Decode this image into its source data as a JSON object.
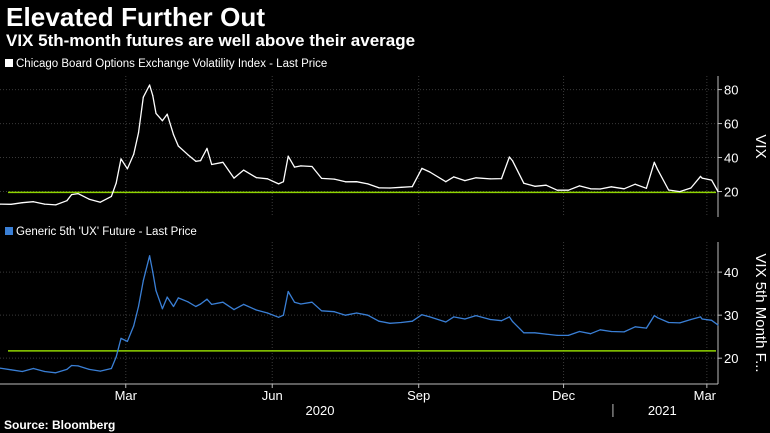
{
  "header": {
    "title": "Elevated Further Out",
    "subtitle": "VIX 5th-month futures are well above their average"
  },
  "footer": {
    "source": "Source: Bloomberg"
  },
  "colors": {
    "vix_line": "#ffffff",
    "future_line": "#3a7fd5",
    "average_line": "#8fd400",
    "background": "#000000",
    "grid": "#3a3a3a"
  },
  "chart_data": [
    {
      "type": "line",
      "legend": "Chicago Board Options Exchange Volatility Index - Last Price",
      "ylabel": "VIX",
      "ylim": [
        5,
        88
      ],
      "yticks": [
        20,
        40,
        60,
        80
      ],
      "grid": true,
      "x_axis": {
        "month_labels": [
          {
            "label": "Mar",
            "date": "2020-03-01"
          },
          {
            "label": "Jun",
            "date": "2020-06-01"
          },
          {
            "label": "Sep",
            "date": "2020-09-01"
          },
          {
            "label": "Dec",
            "date": "2020-12-01"
          },
          {
            "label": "Mar",
            "date": "2021-03-01"
          }
        ],
        "year_labels": [
          {
            "label": "2020",
            "date": "2020-07-01"
          },
          {
            "label": "2021",
            "date": "2021-02-01"
          }
        ],
        "range": [
          "2019-12-13",
          "2021-03-08"
        ]
      },
      "reference_line": {
        "value": 19.5
      },
      "series": [
        {
          "color": "#ffffff",
          "points": [
            [
              "2019-12-13",
              12.6
            ],
            [
              "2019-12-20",
              12.5
            ],
            [
              "2019-12-27",
              13.4
            ],
            [
              "2020-01-03",
              14.0
            ],
            [
              "2020-01-10",
              12.6
            ],
            [
              "2020-01-17",
              12.1
            ],
            [
              "2020-01-24",
              14.6
            ],
            [
              "2020-01-27",
              18.2
            ],
            [
              "2020-01-31",
              18.8
            ],
            [
              "2020-02-07",
              15.5
            ],
            [
              "2020-02-14",
              13.7
            ],
            [
              "2020-02-21",
              17.1
            ],
            [
              "2020-02-24",
              25.0
            ],
            [
              "2020-02-27",
              39.2
            ],
            [
              "2020-03-02",
              33.4
            ],
            [
              "2020-03-06",
              41.9
            ],
            [
              "2020-03-09",
              54.5
            ],
            [
              "2020-03-12",
              75.5
            ],
            [
              "2020-03-16",
              82.7
            ],
            [
              "2020-03-18",
              76.4
            ],
            [
              "2020-03-20",
              66.0
            ],
            [
              "2020-03-24",
              61.7
            ],
            [
              "2020-03-27",
              65.5
            ],
            [
              "2020-03-31",
              53.5
            ],
            [
              "2020-04-03",
              46.8
            ],
            [
              "2020-04-09",
              41.7
            ],
            [
              "2020-04-14",
              37.8
            ],
            [
              "2020-04-17",
              38.2
            ],
            [
              "2020-04-21",
              45.4
            ],
            [
              "2020-04-24",
              35.9
            ],
            [
              "2020-05-01",
              37.2
            ],
            [
              "2020-05-08",
              27.9
            ],
            [
              "2020-05-14",
              32.6
            ],
            [
              "2020-05-22",
              28.2
            ],
            [
              "2020-05-29",
              27.5
            ],
            [
              "2020-06-05",
              24.5
            ],
            [
              "2020-06-08",
              25.8
            ],
            [
              "2020-06-11",
              40.8
            ],
            [
              "2020-06-15",
              34.4
            ],
            [
              "2020-06-19",
              35.1
            ],
            [
              "2020-06-26",
              34.7
            ],
            [
              "2020-07-02",
              27.7
            ],
            [
              "2020-07-10",
              27.3
            ],
            [
              "2020-07-17",
              25.7
            ],
            [
              "2020-07-24",
              25.8
            ],
            [
              "2020-07-31",
              24.5
            ],
            [
              "2020-08-07",
              22.2
            ],
            [
              "2020-08-14",
              22.1
            ],
            [
              "2020-08-21",
              22.5
            ],
            [
              "2020-08-28",
              22.9
            ],
            [
              "2020-09-03",
              33.6
            ],
            [
              "2020-09-08",
              31.5
            ],
            [
              "2020-09-18",
              25.8
            ],
            [
              "2020-09-23",
              28.6
            ],
            [
              "2020-09-30",
              26.4
            ],
            [
              "2020-10-07",
              28.1
            ],
            [
              "2020-10-16",
              27.4
            ],
            [
              "2020-10-23",
              27.6
            ],
            [
              "2020-10-28",
              40.3
            ],
            [
              "2020-10-30",
              38.0
            ],
            [
              "2020-11-06",
              24.9
            ],
            [
              "2020-11-13",
              23.1
            ],
            [
              "2020-11-20",
              23.7
            ],
            [
              "2020-11-27",
              20.8
            ],
            [
              "2020-12-04",
              20.8
            ],
            [
              "2020-12-11",
              23.3
            ],
            [
              "2020-12-18",
              21.6
            ],
            [
              "2020-12-24",
              21.5
            ],
            [
              "2020-12-31",
              22.8
            ],
            [
              "2021-01-08",
              21.6
            ],
            [
              "2021-01-15",
              24.3
            ],
            [
              "2021-01-22",
              21.9
            ],
            [
              "2021-01-27",
              37.2
            ],
            [
              "2021-01-29",
              33.1
            ],
            [
              "2021-02-05",
              20.9
            ],
            [
              "2021-02-12",
              19.97
            ],
            [
              "2021-02-19",
              22.1
            ],
            [
              "2021-02-25",
              28.9
            ],
            [
              "2021-02-26",
              27.9
            ],
            [
              "2021-03-04",
              26.7
            ],
            [
              "2021-03-08",
              20.0
            ]
          ]
        }
      ]
    },
    {
      "type": "line",
      "legend": "Generic 5th 'UX' Future - Last Price",
      "ylabel": "VIX 5th Month F...",
      "ylim": [
        14,
        47
      ],
      "yticks": [
        20,
        30,
        40
      ],
      "grid": true,
      "reference_line": {
        "value": 21.7
      },
      "series": [
        {
          "color": "#3a7fd5",
          "points": [
            [
              "2019-12-13",
              17.7
            ],
            [
              "2019-12-20",
              17.3
            ],
            [
              "2019-12-27",
              16.9
            ],
            [
              "2020-01-03",
              17.6
            ],
            [
              "2020-01-10",
              16.9
            ],
            [
              "2020-01-17",
              16.6
            ],
            [
              "2020-01-24",
              17.4
            ],
            [
              "2020-01-27",
              18.3
            ],
            [
              "2020-01-31",
              18.2
            ],
            [
              "2020-02-07",
              17.4
            ],
            [
              "2020-02-14",
              17.0
            ],
            [
              "2020-02-21",
              17.6
            ],
            [
              "2020-02-24",
              20.3
            ],
            [
              "2020-02-27",
              24.6
            ],
            [
              "2020-03-02",
              23.9
            ],
            [
              "2020-03-06",
              27.5
            ],
            [
              "2020-03-09",
              32.0
            ],
            [
              "2020-03-12",
              38.0
            ],
            [
              "2020-03-16",
              43.8
            ],
            [
              "2020-03-18",
              40.0
            ],
            [
              "2020-03-20",
              35.7
            ],
            [
              "2020-03-24",
              31.5
            ],
            [
              "2020-03-27",
              34.2
            ],
            [
              "2020-03-31",
              32.0
            ],
            [
              "2020-04-03",
              34.0
            ],
            [
              "2020-04-09",
              33.1
            ],
            [
              "2020-04-14",
              32.0
            ],
            [
              "2020-04-17",
              32.6
            ],
            [
              "2020-04-21",
              33.7
            ],
            [
              "2020-04-24",
              32.5
            ],
            [
              "2020-05-01",
              33.0
            ],
            [
              "2020-05-08",
              31.3
            ],
            [
              "2020-05-14",
              32.5
            ],
            [
              "2020-05-22",
              31.2
            ],
            [
              "2020-05-29",
              30.5
            ],
            [
              "2020-06-05",
              29.5
            ],
            [
              "2020-06-08",
              30.0
            ],
            [
              "2020-06-11",
              35.5
            ],
            [
              "2020-06-15",
              33.0
            ],
            [
              "2020-06-19",
              32.6
            ],
            [
              "2020-06-26",
              33.0
            ],
            [
              "2020-07-02",
              31.0
            ],
            [
              "2020-07-10",
              30.8
            ],
            [
              "2020-07-17",
              30.0
            ],
            [
              "2020-07-24",
              30.5
            ],
            [
              "2020-07-31",
              30.0
            ],
            [
              "2020-08-07",
              28.6
            ],
            [
              "2020-08-14",
              28.1
            ],
            [
              "2020-08-21",
              28.3
            ],
            [
              "2020-08-28",
              28.6
            ],
            [
              "2020-09-03",
              30.1
            ],
            [
              "2020-09-08",
              29.6
            ],
            [
              "2020-09-18",
              28.4
            ],
            [
              "2020-09-23",
              29.6
            ],
            [
              "2020-09-30",
              29.1
            ],
            [
              "2020-10-07",
              29.9
            ],
            [
              "2020-10-16",
              29.0
            ],
            [
              "2020-10-23",
              28.7
            ],
            [
              "2020-10-28",
              29.6
            ],
            [
              "2020-10-30",
              28.5
            ],
            [
              "2020-11-06",
              25.9
            ],
            [
              "2020-11-13",
              25.9
            ],
            [
              "2020-11-20",
              25.6
            ],
            [
              "2020-11-27",
              25.3
            ],
            [
              "2020-12-04",
              25.3
            ],
            [
              "2020-12-11",
              26.2
            ],
            [
              "2020-12-18",
              25.7
            ],
            [
              "2020-12-24",
              26.6
            ],
            [
              "2020-12-31",
              26.2
            ],
            [
              "2021-01-08",
              26.1
            ],
            [
              "2021-01-15",
              27.3
            ],
            [
              "2021-01-22",
              27.0
            ],
            [
              "2021-01-27",
              29.9
            ],
            [
              "2021-01-29",
              29.4
            ],
            [
              "2021-02-05",
              28.3
            ],
            [
              "2021-02-12",
              28.2
            ],
            [
              "2021-02-19",
              29.0
            ],
            [
              "2021-02-25",
              29.6
            ],
            [
              "2021-02-26",
              29.1
            ],
            [
              "2021-03-04",
              28.8
            ],
            [
              "2021-03-08",
              27.7
            ]
          ]
        }
      ]
    }
  ]
}
